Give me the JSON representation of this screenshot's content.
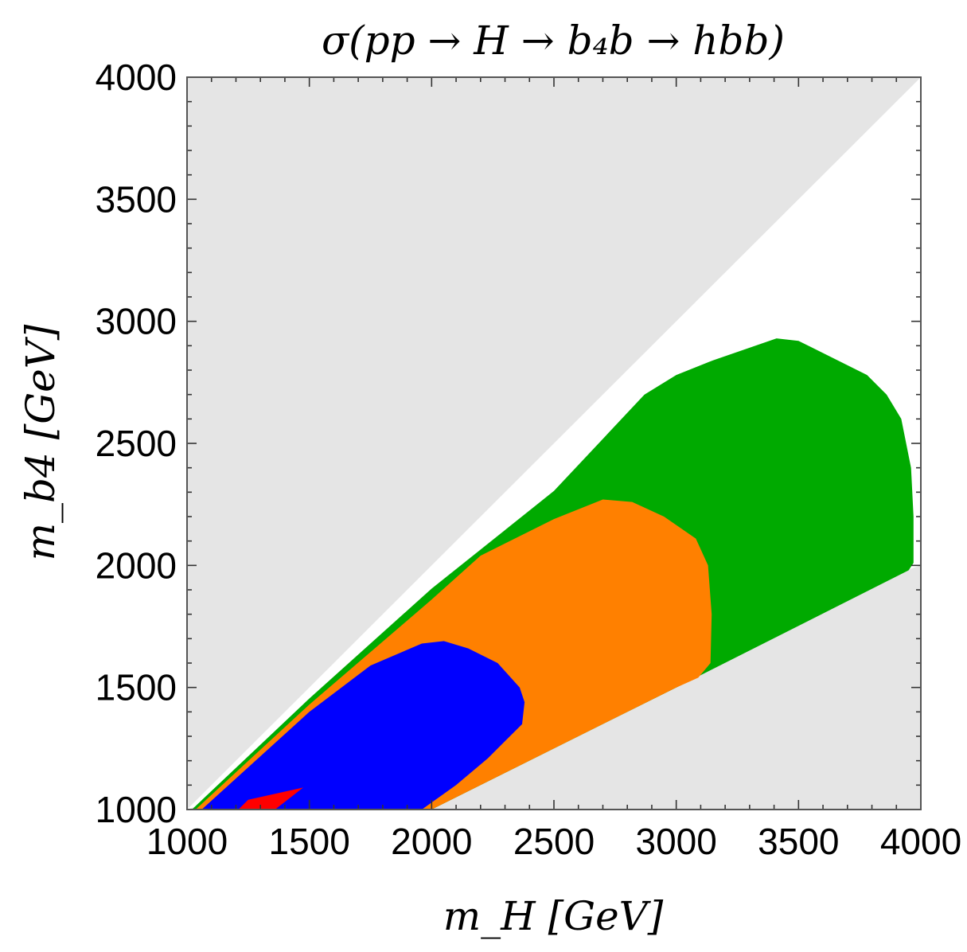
{
  "chart_data": {
    "type": "area",
    "title": "σ(pp → H → b₄b → hbb)",
    "xlabel": "m_H [GeV]",
    "ylabel": "m_b4 [GeV]",
    "xlim": [
      1000,
      4000
    ],
    "ylim": [
      1000,
      4000
    ],
    "x_ticks": [
      "1000",
      "1500",
      "2000",
      "2500",
      "3000",
      "3500",
      "4000"
    ],
    "y_ticks": [
      "1000",
      "1500",
      "2000",
      "2500",
      "3000",
      "3500",
      "4000"
    ],
    "grid": false,
    "legend": "none",
    "regions": [
      {
        "role": "excluded-upper",
        "color": "#e5e5e5",
        "points": [
          [
            1000,
            1000
          ],
          [
            1000,
            4000
          ],
          [
            4000,
            4000
          ]
        ]
      },
      {
        "role": "excluded-lower",
        "color": "#e5e5e5",
        "points": [
          [
            1000,
            1000
          ],
          [
            4000,
            1000
          ],
          [
            4000,
            2000
          ]
        ]
      },
      {
        "role": "band",
        "color": "#00aa00",
        "points": [
          [
            1020,
            1000
          ],
          [
            1500,
            1455
          ],
          [
            2000,
            1905
          ],
          [
            2500,
            2305
          ],
          [
            2870,
            2700
          ],
          [
            3000,
            2780
          ],
          [
            3150,
            2840
          ],
          [
            3410,
            2930
          ],
          [
            3500,
            2920
          ],
          [
            3780,
            2780
          ],
          [
            3860,
            2700
          ],
          [
            3920,
            2600
          ],
          [
            3960,
            2400
          ],
          [
            3970,
            2200
          ],
          [
            3970,
            2010
          ],
          [
            3950,
            1980
          ],
          [
            3000,
            1500
          ],
          [
            2000,
            1000
          ]
        ]
      },
      {
        "role": "band",
        "color": "#ff8000",
        "points": [
          [
            1035,
            1000
          ],
          [
            1500,
            1430
          ],
          [
            2000,
            1860
          ],
          [
            2200,
            2040
          ],
          [
            2500,
            2190
          ],
          [
            2700,
            2270
          ],
          [
            2820,
            2260
          ],
          [
            2950,
            2200
          ],
          [
            3080,
            2110
          ],
          [
            3130,
            2000
          ],
          [
            3145,
            1800
          ],
          [
            3140,
            1600
          ],
          [
            3090,
            1540
          ],
          [
            3000,
            1500
          ],
          [
            2000,
            1000
          ]
        ]
      },
      {
        "role": "band",
        "color": "#0000ff",
        "points": [
          [
            1060,
            1000
          ],
          [
            1500,
            1400
          ],
          [
            1750,
            1590
          ],
          [
            1960,
            1680
          ],
          [
            2050,
            1690
          ],
          [
            2150,
            1660
          ],
          [
            2270,
            1600
          ],
          [
            2360,
            1500
          ],
          [
            2380,
            1440
          ],
          [
            2370,
            1350
          ],
          [
            2230,
            1210
          ],
          [
            2100,
            1100
          ],
          [
            1960,
            1000
          ]
        ]
      },
      {
        "role": "band",
        "color": "#ff0000",
        "points": [
          [
            1210,
            1000
          ],
          [
            1250,
            1040
          ],
          [
            1475,
            1090
          ],
          [
            1360,
            1000
          ]
        ]
      }
    ]
  }
}
